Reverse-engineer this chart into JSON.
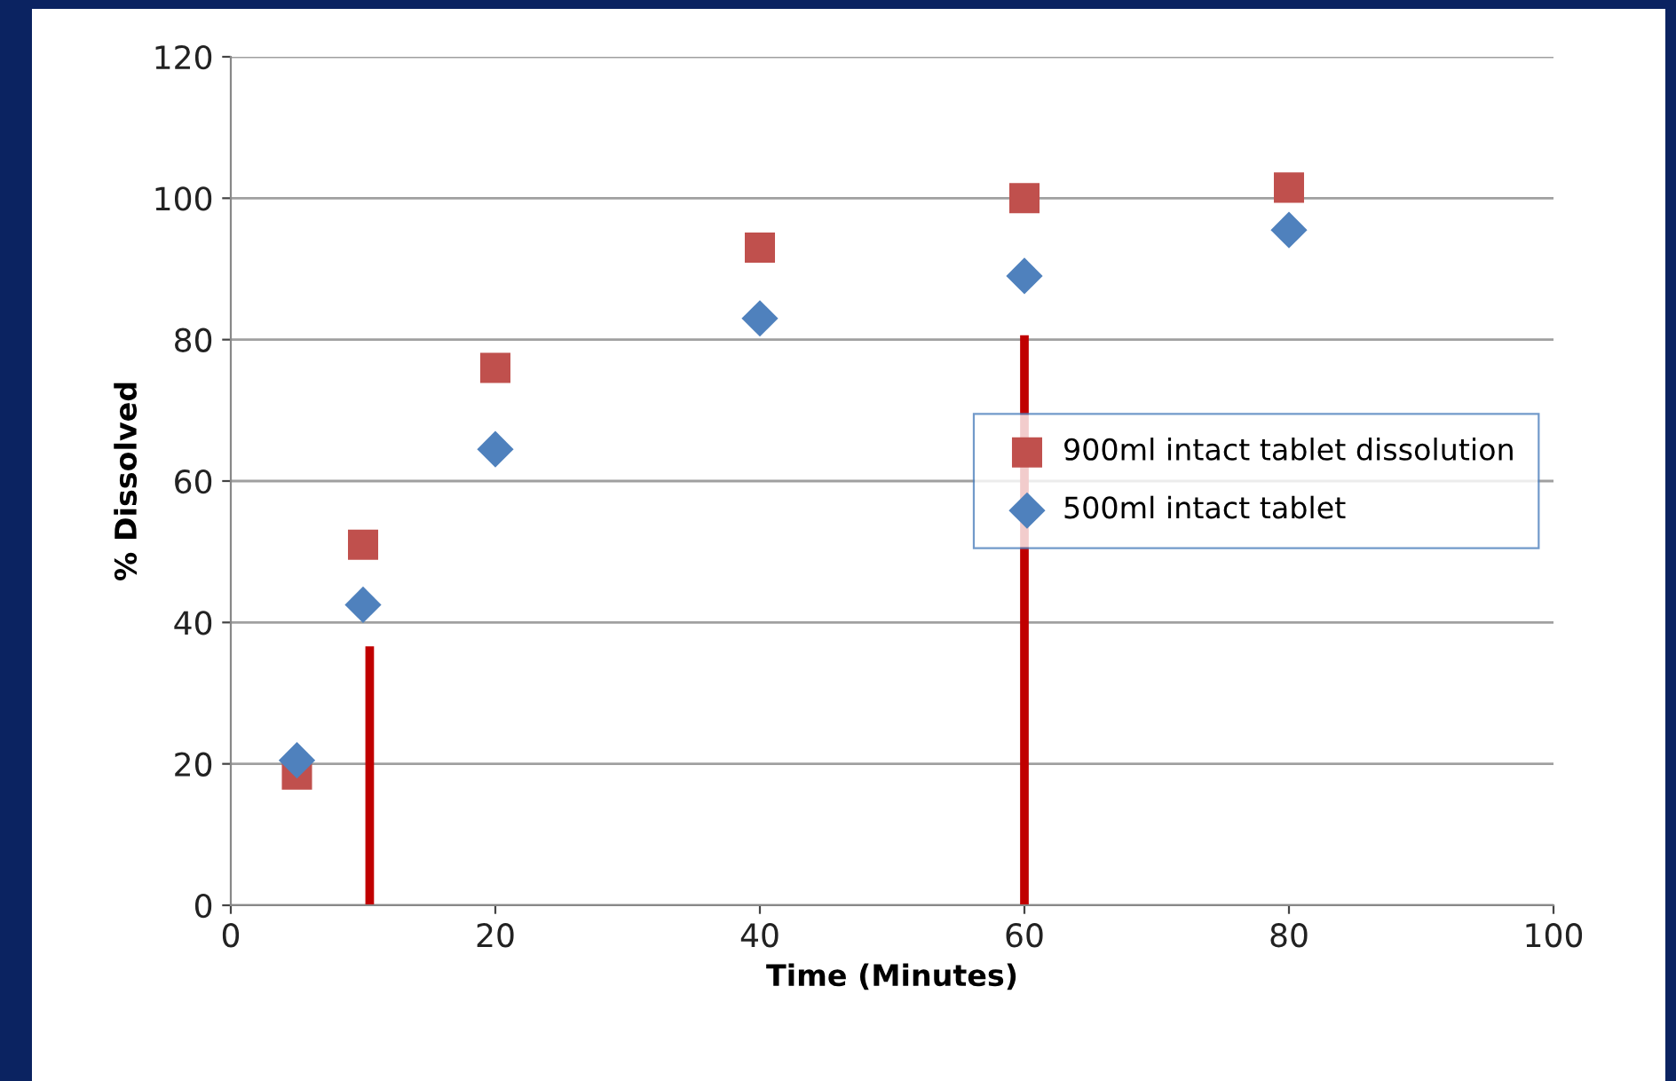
{
  "chart_data": {
    "type": "scatter",
    "xlabel": "Time (Minutes)",
    "ylabel": "% Dissolved",
    "xlim": [
      0,
      100
    ],
    "xticks": [
      0,
      20,
      40,
      60,
      80,
      100
    ],
    "ylim": [
      0,
      120
    ],
    "yticks": [
      0,
      20,
      40,
      60,
      80,
      100,
      120
    ],
    "grid": "y",
    "legend": "right",
    "series": [
      {
        "name": "900ml intact tablet dissolution",
        "color": "#c0504d",
        "marker": "square",
        "x": [
          5,
          10,
          20,
          40,
          60,
          80
        ],
        "values": [
          18.5,
          51,
          76,
          93,
          100,
          101.5
        ]
      },
      {
        "name": "500ml intact tablet",
        "color": "#4f81bd",
        "marker": "diamond",
        "x": [
          5,
          10,
          20,
          40,
          60,
          80
        ],
        "values": [
          20.5,
          42.5,
          64.5,
          83,
          89,
          95.5
        ]
      },
      {
        "type": "line",
        "color": "#c00000",
        "marker": "none",
        "x": [
          10.5,
          10.5
        ],
        "values": [
          0,
          36
        ]
      },
      {
        "type": "line",
        "color": "#c00000",
        "marker": "none",
        "x": [
          60,
          60
        ],
        "values": [
          0,
          80
        ]
      }
    ]
  }
}
